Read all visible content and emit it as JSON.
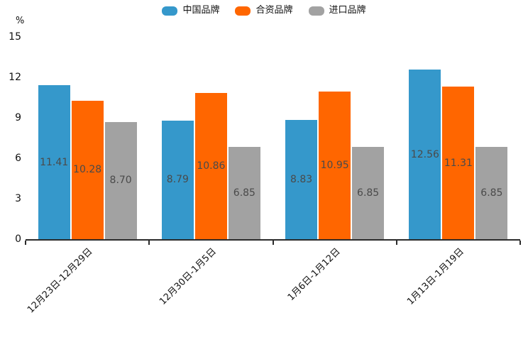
{
  "chart_data": {
    "type": "bar",
    "title": "",
    "unit_label": "%",
    "categories": [
      "12月23日-12月29日",
      "12月30日-1月5日",
      "1月6日-1月12日",
      "1月13日-1月19日"
    ],
    "series": [
      {
        "name": "中国品牌",
        "color": "#3598cb",
        "values": [
          11.41,
          8.79,
          8.83,
          12.56
        ],
        "labels": [
          "11.41",
          "8.79",
          "8.83",
          "12.56"
        ]
      },
      {
        "name": "合资品牌",
        "color": "#ff6600",
        "values": [
          10.28,
          10.86,
          10.95,
          11.31
        ],
        "labels": [
          "10.28",
          "10.86",
          "10.95",
          "11.31"
        ]
      },
      {
        "name": "进口品牌",
        "color": "#a2a2a2",
        "values": [
          8.7,
          6.85,
          6.85,
          6.85
        ],
        "labels": [
          "8.70",
          "6.85",
          "6.85",
          "6.85"
        ]
      }
    ],
    "y_axis": {
      "min": 0,
      "max": 15,
      "ticks": [
        0,
        3,
        6,
        9,
        12,
        15
      ],
      "unit": "%"
    },
    "x_axis": {
      "tick_style": "category-boundaries",
      "label_rotation_deg": 45
    },
    "legend_position": "top-center",
    "grid": false,
    "value_labels": "inside-middle",
    "colors": {
      "axis_line": "#2b2b2b",
      "axis_text": "#111111",
      "bar_value_text": "#4a4a4a",
      "background": "#ffffff"
    }
  }
}
